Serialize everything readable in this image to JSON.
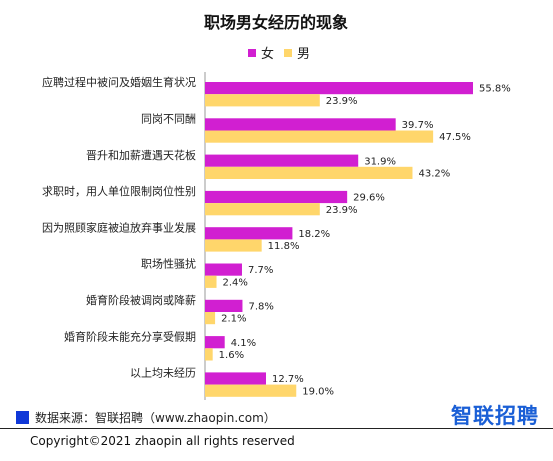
{
  "chart_data": {
    "type": "bar",
    "orientation": "horizontal",
    "title": "职场男女经历的现象",
    "categories": [
      "应聘过程中被问及婚姻生育状况",
      "同岗不同酬",
      "晋升和加薪遭遇天花板",
      "求职时，用人单位限制岗位性别",
      "因为照顾家庭被迫放弃事业发展",
      "职场性骚扰",
      "婚育阶段被调岗或降薪",
      "婚育阶段未能充分享受假期",
      "以上均未经历"
    ],
    "series": [
      {
        "name": "女",
        "color": "#d11fd1",
        "values": [
          55.8,
          39.7,
          31.9,
          29.6,
          18.2,
          7.7,
          7.8,
          4.1,
          12.7
        ],
        "labels": [
          "55.8%",
          "39.7%",
          "31.9%",
          "29.6%",
          "18.2%",
          "7.7%",
          "7.8%",
          "4.1%",
          "12.7%"
        ]
      },
      {
        "name": "男",
        "color": "#ffd66b",
        "values": [
          23.9,
          47.5,
          43.2,
          23.9,
          11.8,
          2.4,
          2.1,
          1.6,
          19.0
        ],
        "labels": [
          "23.9%",
          "47.5%",
          "43.2%",
          "23.9%",
          "11.8%",
          "2.4%",
          "2.1%",
          "1.6%",
          "19.0%"
        ]
      }
    ],
    "xlim": [
      0,
      60
    ],
    "legend_position": "top-center",
    "grid": false
  },
  "footer": {
    "source_text": "数据来源：智联招聘（www.zhaopin.com）",
    "source_marker_color": "#1038d8",
    "logo_text": "智联招聘",
    "logo_color": "#1a5fd6",
    "copyright": "Copyright©2021 zhaopin all rights reserved"
  }
}
